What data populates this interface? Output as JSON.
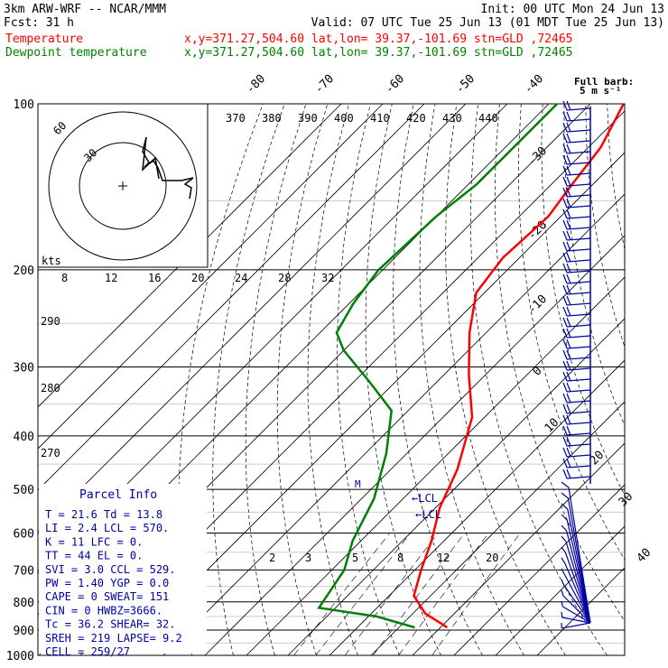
{
  "header": {
    "model": "3km ARW-WRF -- NCAR/MMM",
    "init": "Init: 00 UTC Mon 24 Jun 13",
    "fcst_label": "Fcst:",
    "fcst_value": "31 h",
    "valid": "Valid: 07 UTC Tue 25 Jun 13 (01 MDT Tue 25 Jun 13)",
    "temp_label": "Temperature",
    "temp_info": "x,y=371.27,504.60    lat,lon= 39.37,-101.69   stn=GLD ,72465",
    "dew_label": "Dewpoint temperature",
    "dew_info": "x,y=371.27,504.60    lat,lon= 39.37,-101.69   stn=GLD ,72465",
    "full_barb": "Full barb:",
    "full_barb_units": "5 m s⁻¹",
    "kts": "kts"
  },
  "colors": {
    "temperature": "#ff0000",
    "dewpoint": "#008000",
    "barbs": "#0000a0",
    "cl": "#0000a0"
  },
  "parcel": {
    "title": "Parcel Info",
    "rows": [
      "T  =   21.6  Td =  13.8",
      "LI =    2.4  LCL =  570.",
      "K  =     11  LFC =    0.",
      "TT =     44  EL  =    0.",
      "SVI =   3.0  CCL =  529.",
      "PW =   1.40  YGP =   0.0",
      "CAPE =    0  SWEAT=  151",
      "CIN  =    0  HWBZ=3666.",
      "Tc  =  36.2  SHEAR=  32.",
      "SREH =  219  LAPSE=  9.2",
      "CELL = 259/27"
    ]
  },
  "markers": {
    "lcl1": "←LCL",
    "lcl2": "←LCL",
    "m": "M"
  },
  "chart_data": {
    "type": "line",
    "pressure_levels": [
      "100",
      "200",
      "300",
      "400",
      "500",
      "600",
      "700",
      "800",
      "900",
      "1000"
    ],
    "isotherm_labels": [
      "-80",
      "-70",
      "-60",
      "-50",
      "-40",
      "-30",
      "-20",
      "-10",
      "0",
      "10",
      "20",
      "30",
      "40"
    ],
    "theta_top_labels": [
      "370",
      "380",
      "390",
      "400",
      "410",
      "420",
      "430",
      "440"
    ],
    "theta_left_labels": [
      "290",
      "280",
      "270"
    ],
    "mixratio_labels_200": [
      "8",
      "12",
      "16",
      "20",
      "24",
      "28",
      "32"
    ],
    "mixratio_labels_700": [
      "2",
      "3",
      "5",
      "8",
      "12",
      "20"
    ],
    "hodo_ring_labels": [
      "60",
      "30"
    ],
    "series": [
      {
        "name": "Temperature",
        "x": [
          -62,
          -57,
          -55,
          -53,
          -54,
          -52,
          -44,
          -34,
          -23,
          -14,
          -9,
          -3,
          1.5,
          6,
          13,
          20,
          21.6
        ],
        "p": [
          100,
          120,
          140,
          160,
          190,
          220,
          260,
          310,
          370,
          460,
          540,
          620,
          700,
          780,
          840,
          880,
          890
        ]
      },
      {
        "name": "Dewpoint temperature",
        "x": [
          -78,
          -78,
          -80,
          -81,
          -79,
          -76,
          -70,
          -56,
          -44,
          -35,
          -27,
          -22,
          -17,
          -14,
          2,
          13.8
        ],
        "p": [
          100,
          140,
          160,
          200,
          230,
          260,
          280,
          320,
          360,
          430,
          520,
          620,
          700,
          820,
          850,
          890
        ]
      }
    ],
    "ylim": [
      1000,
      100
    ]
  }
}
